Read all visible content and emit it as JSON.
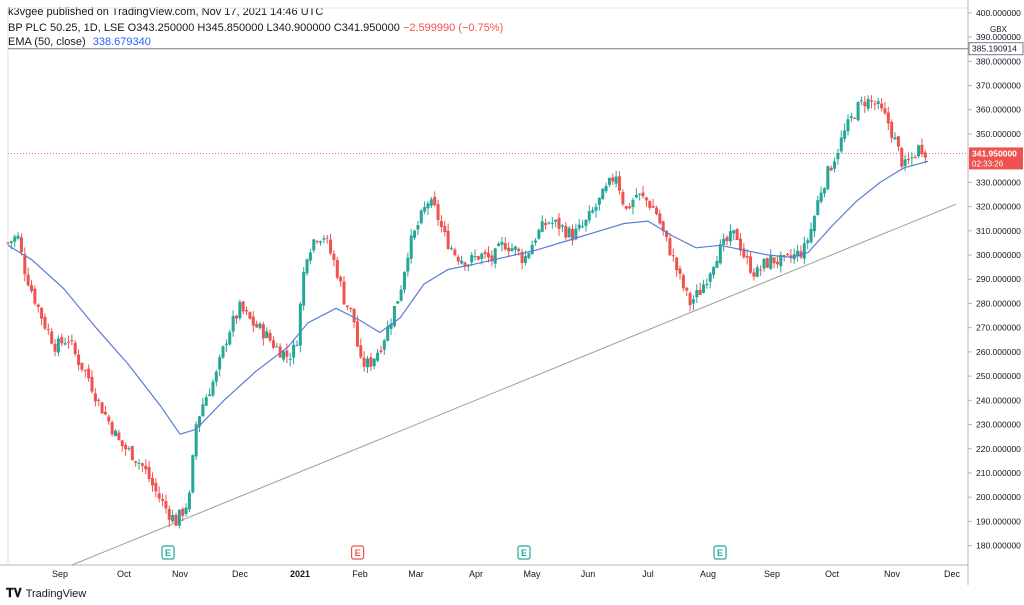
{
  "header": {
    "publisher": "k3vgee published on TradingView.com, Nov 17, 2021 14:46 UTC",
    "symbol": "BP PLC",
    "exchange_info": "50.25, 1D, LSE",
    "ohlc": "O343.250000 H345.850000 L340.900000 C341.950000",
    "change": "−2.599990 (−0.75%)",
    "ema_label": "EMA (50, close)",
    "ema_value": "338.679340"
  },
  "footer": {
    "brand": "TradingView"
  },
  "colors": {
    "up": "#26a69a",
    "down": "#ef5350",
    "ema": "#5b7bd5",
    "trend": "#9e9e9e"
  },
  "chart_data": {
    "type": "candlestick",
    "currency": "GBX",
    "ylim": [
      172,
      402
    ],
    "y_ticks": [
      "400.000000",
      "390.000000",
      "380.000000",
      "370.000000",
      "360.000000",
      "350.000000",
      "340.000000",
      "330.000000",
      "320.000000",
      "310.000000",
      "300.000000",
      "290.000000",
      "280.000000",
      "270.000000",
      "260.000000",
      "250.000000",
      "240.000000",
      "230.000000",
      "220.000000",
      "210.000000",
      "200.000000",
      "190.000000",
      "180.000000"
    ],
    "y_tick_values": [
      400,
      390,
      380,
      370,
      360,
      350,
      340,
      330,
      320,
      310,
      300,
      290,
      280,
      270,
      260,
      250,
      240,
      230,
      220,
      210,
      200,
      190,
      180
    ],
    "x_ticks": [
      "Sep",
      "Oct",
      "Nov",
      "Dec",
      "2021",
      "Feb",
      "Mar",
      "Apr",
      "May",
      "Jun",
      "Jul",
      "Aug",
      "Sep",
      "Oct",
      "Nov",
      "Dec"
    ],
    "x_tick_pos": [
      0.065,
      0.145,
      0.215,
      0.29,
      0.365,
      0.44,
      0.51,
      0.585,
      0.655,
      0.725,
      0.8,
      0.875,
      0.955,
      1.03,
      1.105,
      1.18
    ],
    "horizontal_line": {
      "value": 385.190914,
      "label": "385.190914"
    },
    "last_price": {
      "value": 341.95,
      "label": "341.950000",
      "countdown": "02:33:26"
    },
    "earnings_markers": [
      {
        "label": "E",
        "x": 0.2,
        "type": "up"
      },
      {
        "label": "E",
        "x": 0.437,
        "type": "down"
      },
      {
        "label": "E",
        "x": 0.645,
        "type": "up"
      },
      {
        "label": "E",
        "x": 0.89,
        "type": "up"
      }
    ],
    "trendline": [
      [
        0.08,
        172
      ],
      [
        1.185,
        321
      ]
    ],
    "path_points": [
      [
        0,
        305
      ],
      [
        0.012,
        308
      ],
      [
        0.02,
        295
      ],
      [
        0.03,
        285
      ],
      [
        0.045,
        272
      ],
      [
        0.06,
        262
      ],
      [
        0.075,
        266
      ],
      [
        0.085,
        258
      ],
      [
        0.1,
        250
      ],
      [
        0.112,
        240
      ],
      [
        0.125,
        232
      ],
      [
        0.14,
        222
      ],
      [
        0.155,
        218
      ],
      [
        0.17,
        212
      ],
      [
        0.185,
        202
      ],
      [
        0.2,
        194
      ],
      [
        0.21,
        190
      ],
      [
        0.22,
        195
      ],
      [
        0.227,
        200
      ],
      [
        0.235,
        230
      ],
      [
        0.245,
        240
      ],
      [
        0.26,
        250
      ],
      [
        0.275,
        268
      ],
      [
        0.29,
        278
      ],
      [
        0.305,
        272
      ],
      [
        0.32,
        268
      ],
      [
        0.335,
        262
      ],
      [
        0.35,
        258
      ],
      [
        0.36,
        262
      ],
      [
        0.372,
        300
      ],
      [
        0.385,
        308
      ],
      [
        0.395,
        308
      ],
      [
        0.41,
        295
      ],
      [
        0.42,
        282
      ],
      [
        0.432,
        274
      ],
      [
        0.44,
        255
      ],
      [
        0.452,
        255
      ],
      [
        0.465,
        262
      ],
      [
        0.475,
        270
      ],
      [
        0.49,
        285
      ],
      [
        0.5,
        302
      ],
      [
        0.512,
        312
      ],
      [
        0.525,
        322
      ],
      [
        0.535,
        318
      ],
      [
        0.545,
        308
      ],
      [
        0.56,
        300
      ],
      [
        0.575,
        297
      ],
      [
        0.59,
        300
      ],
      [
        0.605,
        298
      ],
      [
        0.62,
        305
      ],
      [
        0.635,
        302
      ],
      [
        0.645,
        298
      ],
      [
        0.66,
        308
      ],
      [
        0.675,
        314
      ],
      [
        0.69,
        312
      ],
      [
        0.705,
        308
      ],
      [
        0.72,
        312
      ],
      [
        0.735,
        320
      ],
      [
        0.75,
        328
      ],
      [
        0.76,
        334
      ],
      [
        0.772,
        318
      ],
      [
        0.785,
        325
      ],
      [
        0.8,
        322
      ],
      [
        0.81,
        318
      ],
      [
        0.82,
        308
      ],
      [
        0.83,
        300
      ],
      [
        0.84,
        290
      ],
      [
        0.852,
        280
      ],
      [
        0.865,
        285
      ],
      [
        0.875,
        292
      ],
      [
        0.885,
        300
      ],
      [
        0.9,
        306
      ],
      [
        0.91,
        309
      ],
      [
        0.922,
        298
      ],
      [
        0.935,
        292
      ],
      [
        0.945,
        296
      ],
      [
        0.955,
        298
      ],
      [
        0.97,
        297
      ],
      [
        0.985,
        300
      ],
      [
        0.995,
        302
      ],
      [
        1.005,
        312
      ],
      [
        1.015,
        326
      ],
      [
        1.03,
        338
      ],
      [
        1.045,
        350
      ],
      [
        1.06,
        360
      ],
      [
        1.072,
        364
      ],
      [
        1.085,
        362
      ],
      [
        1.1,
        355
      ],
      [
        1.11,
        346
      ],
      [
        1.12,
        336
      ],
      [
        1.13,
        340
      ],
      [
        1.14,
        345
      ],
      [
        1.15,
        342
      ]
    ],
    "ema_points": [
      [
        0,
        304
      ],
      [
        0.03,
        298
      ],
      [
        0.07,
        286
      ],
      [
        0.11,
        270
      ],
      [
        0.15,
        255
      ],
      [
        0.19,
        238
      ],
      [
        0.215,
        226
      ],
      [
        0.235,
        228
      ],
      [
        0.27,
        240
      ],
      [
        0.31,
        252
      ],
      [
        0.35,
        262
      ],
      [
        0.375,
        272
      ],
      [
        0.41,
        278
      ],
      [
        0.44,
        273
      ],
      [
        0.465,
        268
      ],
      [
        0.49,
        274
      ],
      [
        0.52,
        288
      ],
      [
        0.55,
        294
      ],
      [
        0.58,
        296
      ],
      [
        0.62,
        299
      ],
      [
        0.66,
        302
      ],
      [
        0.7,
        306
      ],
      [
        0.74,
        310
      ],
      [
        0.77,
        313
      ],
      [
        0.8,
        314
      ],
      [
        0.83,
        308
      ],
      [
        0.86,
        303
      ],
      [
        0.89,
        304
      ],
      [
        0.92,
        302
      ],
      [
        0.95,
        300
      ],
      [
        0.98,
        299
      ],
      [
        1.0,
        301
      ],
      [
        1.03,
        312
      ],
      [
        1.06,
        322
      ],
      [
        1.09,
        330
      ],
      [
        1.12,
        336
      ],
      [
        1.15,
        338.68
      ]
    ]
  }
}
